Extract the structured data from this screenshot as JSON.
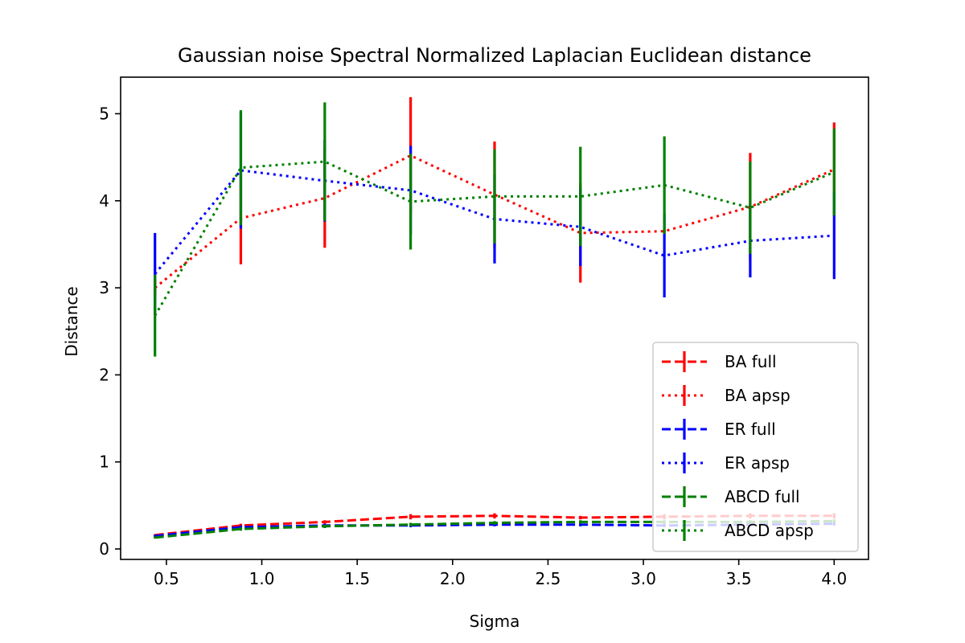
{
  "chart_data": {
    "type": "line",
    "title": "Gaussian noise Spectral Normalized Laplacian Euclidean distance",
    "xlabel": "Sigma",
    "ylabel": "Distance",
    "xlim": [
      0.26,
      4.18
    ],
    "ylim": [
      -0.12,
      5.42
    ],
    "xticks": [
      0.5,
      1.0,
      1.5,
      2.0,
      2.5,
      3.0,
      3.5,
      4.0
    ],
    "xtick_labels": [
      "0.5",
      "1.0",
      "1.5",
      "2.0",
      "2.5",
      "3.0",
      "3.5",
      "4.0"
    ],
    "yticks": [
      0,
      1,
      2,
      3,
      4,
      5
    ],
    "ytick_labels": [
      "0",
      "1",
      "2",
      "3",
      "4",
      "5"
    ],
    "grid": false,
    "legend_position": "lower-right",
    "x": [
      0.44,
      0.89,
      1.33,
      1.78,
      2.22,
      2.67,
      3.11,
      3.56,
      4.0
    ],
    "series": [
      {
        "name": "BA full",
        "color": "#ff0000",
        "linestyle": "dashed",
        "values": [
          0.16,
          0.27,
          0.31,
          0.37,
          0.38,
          0.36,
          0.37,
          0.38,
          0.38
        ],
        "errors": [
          0.01,
          0.02,
          0.02,
          0.03,
          0.03,
          0.02,
          0.03,
          0.03,
          0.03
        ]
      },
      {
        "name": "BA apsp",
        "color": "#ff0000",
        "linestyle": "dotted",
        "values": [
          3.0,
          3.8,
          4.03,
          4.52,
          4.07,
          3.63,
          3.65,
          3.93,
          4.36
        ],
        "errors": [
          0.1,
          0.53,
          0.57,
          0.67,
          0.61,
          0.57,
          0.0,
          0.62,
          0.54
        ]
      },
      {
        "name": "ER full",
        "color": "#0000ff",
        "linestyle": "dashed",
        "values": [
          0.15,
          0.25,
          0.27,
          0.27,
          0.28,
          0.28,
          0.27,
          0.28,
          0.29
        ],
        "errors": [
          0.01,
          0.02,
          0.02,
          0.02,
          0.02,
          0.02,
          0.02,
          0.02,
          0.02
        ]
      },
      {
        "name": "ER apsp",
        "color": "#0000ff",
        "linestyle": "dotted",
        "values": [
          3.16,
          4.35,
          4.23,
          4.12,
          3.79,
          3.7,
          3.37,
          3.54,
          3.6
        ],
        "errors": [
          0.47,
          0.67,
          0.47,
          0.51,
          0.51,
          0.45,
          0.48,
          0.42,
          0.5
        ]
      },
      {
        "name": "ABCD full",
        "color": "#008000",
        "linestyle": "dashed",
        "values": [
          0.13,
          0.23,
          0.26,
          0.28,
          0.3,
          0.31,
          0.31,
          0.31,
          0.32
        ],
        "errors": [
          0.01,
          0.02,
          0.02,
          0.02,
          0.02,
          0.02,
          0.02,
          0.02,
          0.02
        ]
      },
      {
        "name": "ABCD apsp",
        "color": "#008000",
        "linestyle": "dotted",
        "values": [
          2.68,
          4.38,
          4.45,
          3.99,
          4.05,
          4.05,
          4.18,
          3.92,
          4.33
        ],
        "errors": [
          0.47,
          0.66,
          0.68,
          0.55,
          0.54,
          0.57,
          0.56,
          0.53,
          0.5
        ]
      }
    ]
  }
}
